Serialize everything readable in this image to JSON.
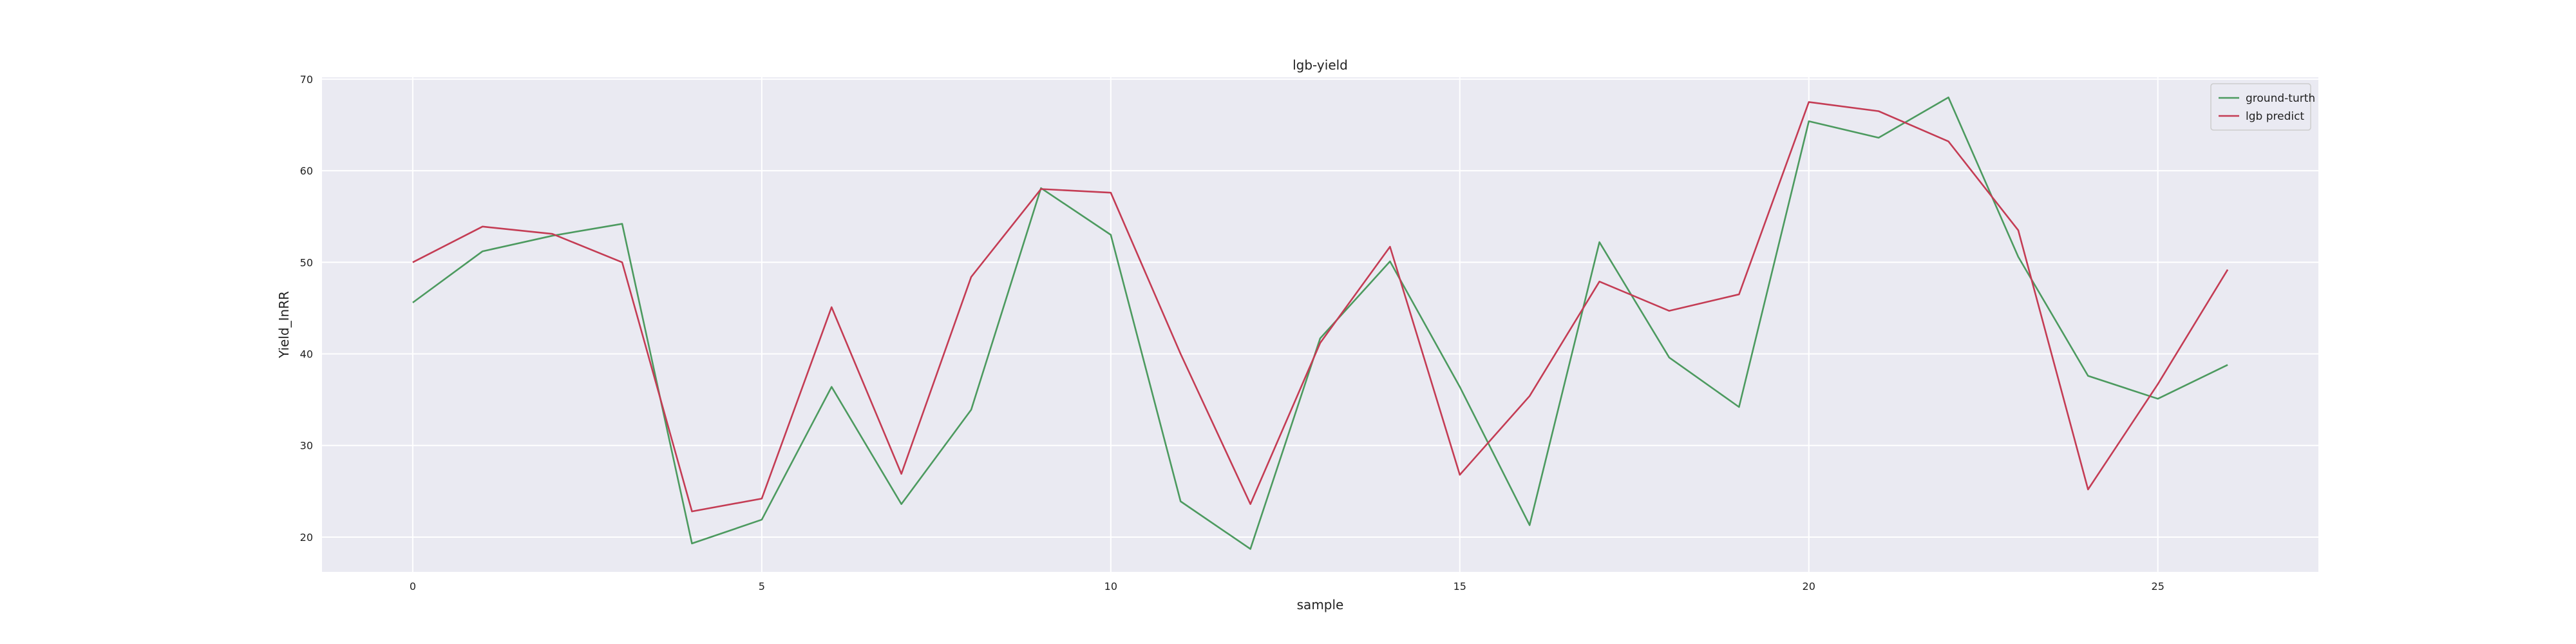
{
  "chart_data": {
    "type": "line",
    "title": "lgb-yield",
    "xlabel": "sample",
    "ylabel": "Yield_InRR",
    "xlim": [
      -1.3,
      27.3
    ],
    "ylim": [
      16.2,
      70.2
    ],
    "x_ticks": [
      0,
      5,
      10,
      15,
      20,
      25
    ],
    "y_ticks": [
      20,
      30,
      40,
      50,
      60,
      70
    ],
    "grid": true,
    "legend_position": "top-right",
    "background_color": "#eaeaf2",
    "x": [
      0,
      1,
      2,
      3,
      4,
      5,
      6,
      7,
      8,
      9,
      10,
      11,
      12,
      13,
      14,
      15,
      16,
      17,
      18,
      19,
      20,
      21,
      22,
      23,
      24,
      25,
      26
    ],
    "series": [
      {
        "name": "ground-turth",
        "color": "#4c9a5f",
        "values": [
          45.6,
          51.2,
          52.9,
          54.2,
          19.3,
          21.9,
          36.4,
          23.6,
          33.9,
          58.1,
          53.0,
          23.9,
          18.7,
          41.7,
          50.1,
          36.4,
          21.3,
          52.2,
          39.6,
          34.2,
          65.4,
          63.6,
          68.0,
          50.6,
          37.6,
          35.1,
          38.8
        ]
      },
      {
        "name": "lgb predict",
        "color": "#c43c54",
        "values": [
          50.0,
          53.9,
          53.1,
          50.0,
          22.8,
          24.2,
          45.1,
          26.9,
          48.4,
          58.0,
          57.6,
          40.0,
          23.6,
          41.2,
          51.7,
          26.8,
          35.4,
          47.9,
          44.7,
          46.5,
          67.5,
          66.5,
          63.2,
          53.5,
          25.2,
          36.7,
          49.2
        ]
      }
    ]
  }
}
